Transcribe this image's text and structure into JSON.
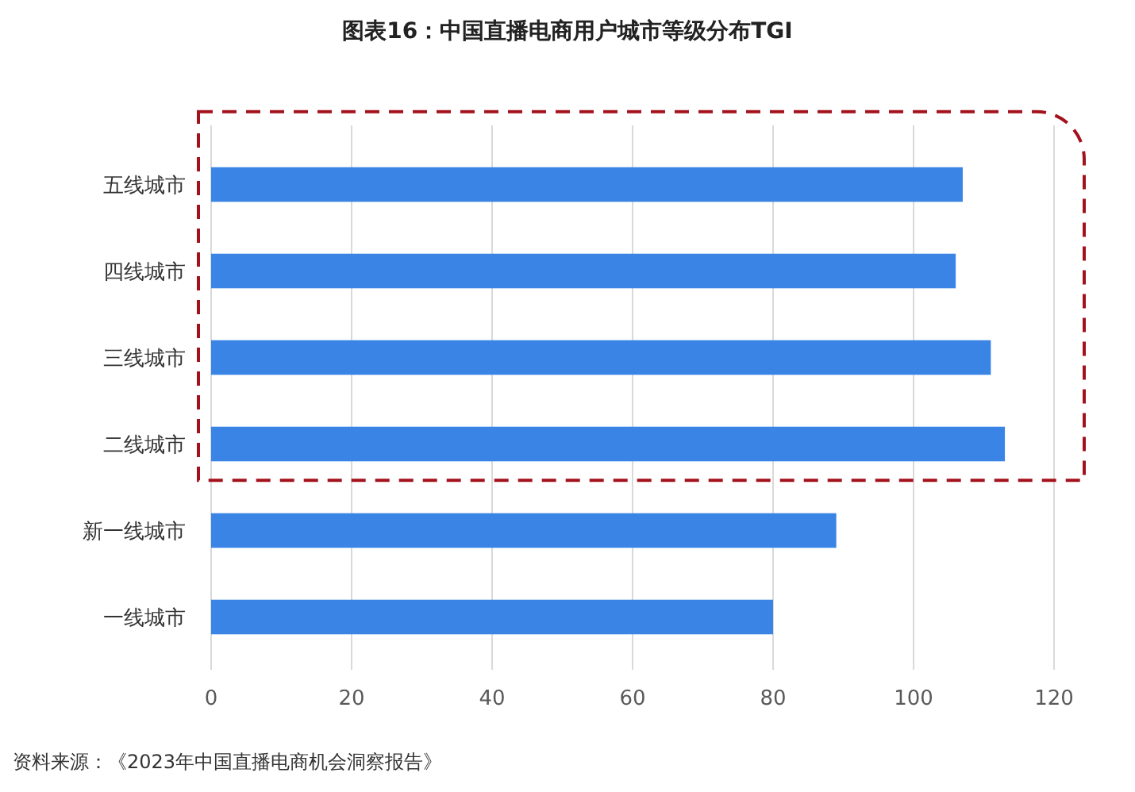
{
  "chart_data": {
    "type": "bar",
    "orientation": "horizontal",
    "title": "图表16：中国直播电商用户城市等级分布TGI",
    "categories": [
      "五线城市",
      "四线城市",
      "三线城市",
      "二线城市",
      "新一线城市",
      "一线城市"
    ],
    "values": [
      107,
      106,
      111,
      113,
      89,
      80
    ],
    "color": "#3984e5",
    "xlim": [
      0,
      120
    ],
    "xticks": [
      0,
      20,
      40,
      60,
      80,
      100,
      120
    ],
    "grid": "x",
    "annotations": [
      "资料来源：《2023年中国直播电商机会洞察报告》"
    ]
  }
}
